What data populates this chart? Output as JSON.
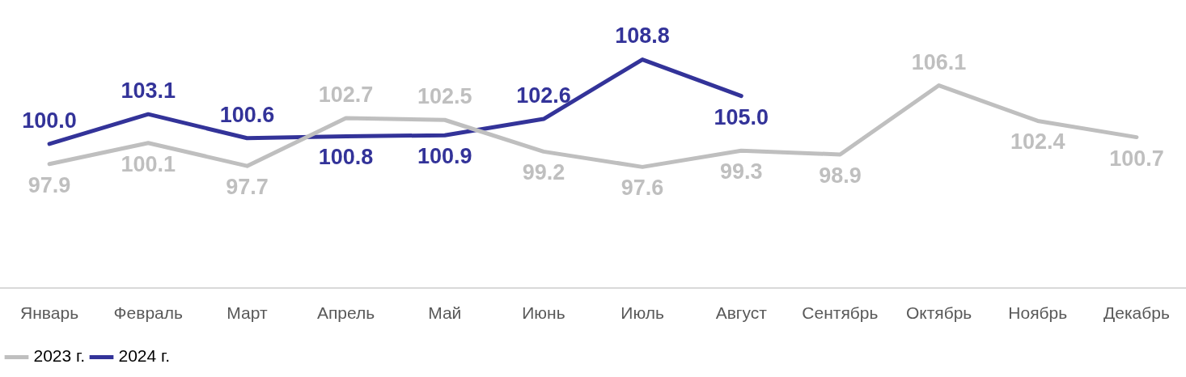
{
  "chart_data": {
    "type": "line",
    "categories": [
      "Январь",
      "Февраль",
      "Март",
      "Апрель",
      "Май",
      "Июнь",
      "Июль",
      "Август",
      "Сентябрь",
      "Октябрь",
      "Ноябрь",
      "Декабрь"
    ],
    "series": [
      {
        "name": "2023 г.",
        "color": "#bfbfbf",
        "values": [
          97.9,
          100.1,
          97.7,
          102.7,
          102.5,
          99.2,
          97.6,
          99.3,
          98.9,
          106.1,
          102.4,
          100.7
        ],
        "value_labels": [
          "97.9",
          "100.1",
          "97.7",
          "102.7",
          "102.5",
          "99.2",
          "97.6",
          "99.3",
          "98.9",
          "106.1",
          "102.4",
          "100.7"
        ]
      },
      {
        "name": "2024 г.",
        "color": "#333399",
        "values": [
          100.0,
          103.1,
          100.6,
          100.8,
          100.9,
          102.6,
          108.8,
          105.0,
          null,
          null,
          null,
          null
        ],
        "value_labels": [
          "100.0",
          "103.1",
          "100.6",
          "100.8",
          "100.9",
          "102.6",
          "108.8",
          "105.0",
          null,
          null,
          null,
          null
        ]
      }
    ],
    "tick_labels": "x",
    "grid": false,
    "legend": "bottom left",
    "marker": "none",
    "line_style": "solid"
  }
}
